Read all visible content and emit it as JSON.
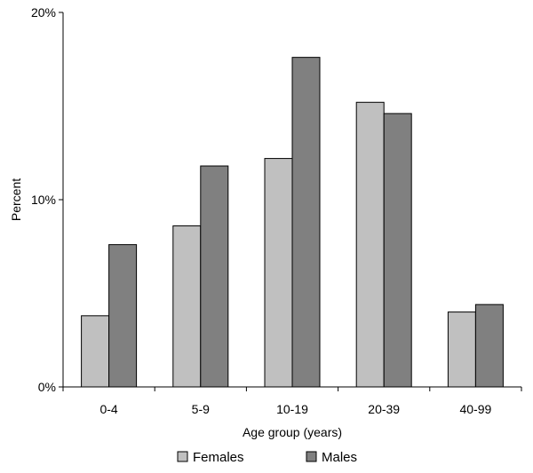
{
  "chart_data": {
    "type": "bar",
    "title": "",
    "xlabel": "Age group (years)",
    "ylabel": "Percent",
    "categories": [
      "0-4",
      "5-9",
      "10-19",
      "20-39",
      "40-99"
    ],
    "series": [
      {
        "name": "Females",
        "values": [
          3.8,
          8.6,
          12.2,
          15.2,
          4.0
        ],
        "color": "#c0c0c0"
      },
      {
        "name": "Males",
        "values": [
          7.6,
          11.8,
          17.6,
          14.6,
          4.4
        ],
        "color": "#808080"
      }
    ],
    "ylim": [
      0,
      20
    ],
    "yticks": [
      {
        "value": 0,
        "label": "0%"
      },
      {
        "value": 10,
        "label": "10%"
      },
      {
        "value": 20,
        "label": "20%"
      }
    ],
    "grid": false,
    "legend_position": "bottom"
  }
}
